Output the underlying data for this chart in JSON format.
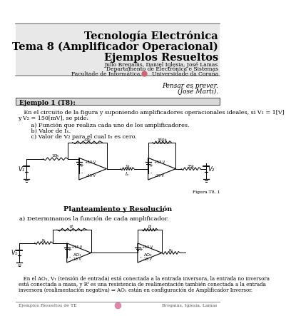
{
  "page_bg": "#ffffff",
  "header_bg": "#e8e8e8",
  "header_border": "#999999",
  "title1": "Tecnología Electrónica",
  "title2": "Tema 8 (Amplificador Operacional)",
  "title3": "Ejemplos Resueltos",
  "authors": "Julio Bregains, Daniel Iglesia, José Lamas",
  "dept": "Departamento de Electrónica e Sistemas",
  "faculty": "Facultade de Informática,      Universidade da Coruña",
  "quote1": "Pensar es prever.",
  "quote2": "(José Martí).",
  "example_label": "Ejemplo 1 (T8):",
  "example_box_bg": "#d8d8d8",
  "body_text1": "   En el circuito de la figura y suponiendo amplificadores operacionales ideales, si V₁ = 1[V]",
  "body_text1b": "y V₂ = 150[mV], se pide:",
  "item_a": "       a) Función que realiza cada uno de los amplificadores.",
  "item_b": "       b) Valor de Iₓ.",
  "item_c": "       c) Valor de V₂ para el cual Iₓ es cero.",
  "section_title": "Planteamiento y Resolución",
  "section_a": "a) Determinamos la función de cada amplificador.",
  "footer_left": "Ejemplos Resueltos de TE",
  "footer_right": "Bregains, Iglesia, Lamas",
  "figure_label": "Figura T8. 1"
}
